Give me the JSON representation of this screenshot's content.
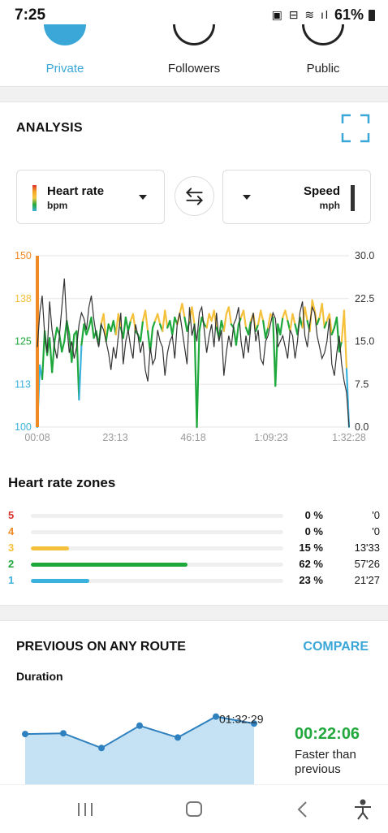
{
  "status_bar": {
    "time": "7:25",
    "battery": "61%"
  },
  "privacy": {
    "options": [
      {
        "label": "Private",
        "active": true
      },
      {
        "label": "Followers",
        "active": false
      },
      {
        "label": "Public",
        "active": false
      }
    ]
  },
  "analysis": {
    "title": "ANALYSIS",
    "left_selector": {
      "label": "Heart rate",
      "unit": "bpm"
    },
    "right_selector": {
      "label": "Speed",
      "unit": "mph"
    }
  },
  "chart_data": {
    "type": "line",
    "x_ticks": [
      "00:08",
      "23:13",
      "46:18",
      "1:09:23",
      "1:32:28"
    ],
    "y_left_ticks": [
      "150",
      "138",
      "125",
      "113",
      "100"
    ],
    "y_right_ticks": [
      "30.0",
      "22.5",
      "15.0",
      "7.5",
      "0.0"
    ],
    "y_left_range": [
      100,
      150
    ],
    "y_right_range": [
      0,
      30
    ],
    "zone_colors": {
      "z1": "#3bb2dd",
      "z2": "#1ea83c",
      "z3": "#f5c13b",
      "z4": "#f08a24",
      "z5": "#d9342b"
    },
    "series": [
      {
        "values": [
          100,
          118,
          114,
          128,
          121,
          126,
          116,
          125,
          129,
          127,
          122,
          125,
          131,
          127,
          119,
          127,
          128,
          108,
          124,
          130,
          127,
          129,
          132,
          126,
          128,
          124,
          130,
          133,
          125,
          130,
          128,
          131,
          127,
          133,
          129,
          126,
          132,
          128,
          131,
          133,
          128,
          127,
          125,
          131,
          134,
          128,
          122,
          129,
          131,
          133,
          130,
          128,
          134,
          129,
          131,
          127,
          132,
          130,
          133,
          136,
          132,
          128,
          131,
          135,
          130,
          100,
          128,
          132,
          130,
          129,
          133,
          131,
          134,
          129,
          126,
          131,
          128,
          133,
          135,
          130,
          129,
          124,
          130,
          132,
          134,
          129,
          127,
          131,
          133,
          128,
          130,
          134,
          131,
          126,
          129,
          133,
          132,
          112,
          130,
          127,
          132,
          134,
          131,
          128,
          133,
          130,
          127,
          132,
          129,
          135,
          131,
          128,
          137,
          134,
          130,
          132,
          136,
          129,
          131,
          133,
          127,
          129,
          132,
          122,
          125,
          134,
          117,
          100
        ]
      },
      {
        "values": [
          14,
          20,
          23,
          16,
          13,
          22,
          17,
          14,
          12,
          16,
          21,
          26,
          18,
          13,
          15,
          12,
          14,
          18,
          20,
          19,
          17,
          21,
          23,
          19,
          16,
          14,
          18,
          17,
          15,
          13,
          10,
          14,
          12,
          16,
          20,
          11,
          15,
          17,
          14,
          12,
          18,
          16,
          13,
          15,
          10,
          8,
          14,
          11,
          12,
          17,
          15,
          14,
          9,
          13,
          15,
          16,
          12,
          18,
          20,
          17,
          14,
          11,
          21,
          16,
          18,
          15,
          20,
          21,
          17,
          13,
          16,
          18,
          14,
          20,
          15,
          17,
          9,
          13,
          16,
          14,
          18,
          19,
          21,
          15,
          12,
          16,
          13,
          18,
          20,
          15,
          17,
          12,
          11,
          15,
          16,
          18,
          20,
          19,
          14,
          15,
          16,
          14,
          12,
          17,
          16,
          12,
          15,
          20,
          22,
          16,
          14,
          18,
          21,
          20,
          16,
          14,
          12,
          13,
          15,
          19,
          11,
          9,
          13,
          16,
          11,
          8,
          6,
          0
        ]
      }
    ]
  },
  "zones": {
    "title": "Heart rate zones",
    "rows": [
      {
        "zone": "5",
        "color": "#d9342b",
        "fraction": 0.0,
        "percent": "0 %",
        "duration": "'0"
      },
      {
        "zone": "4",
        "color": "#f08a24",
        "fraction": 0.0,
        "percent": "0 %",
        "duration": "'0"
      },
      {
        "zone": "3",
        "color": "#f5c13b",
        "fraction": 0.15,
        "percent": "15 %",
        "duration": "13'33"
      },
      {
        "zone": "2",
        "color": "#1ea83c",
        "fraction": 0.62,
        "percent": "62 %",
        "duration": "57'26"
      },
      {
        "zone": "1",
        "color": "#3bb2dd",
        "fraction": 0.23,
        "percent": "23 %",
        "duration": "21'27"
      }
    ]
  },
  "previous": {
    "title": "PREVIOUS ON ANY ROUTE",
    "compare_label": "COMPARE",
    "metric_label": "Duration",
    "point_label": "01:32:29",
    "points": [
      72,
      73,
      52,
      84,
      67,
      97,
      87
    ],
    "highlight_index": 5,
    "delta": "00:22:06",
    "delta_caption": "Faster than previous"
  },
  "nav": {
    "icons": [
      "recent-apps-icon",
      "home-icon",
      "back-icon",
      "accessibility-icon"
    ]
  }
}
